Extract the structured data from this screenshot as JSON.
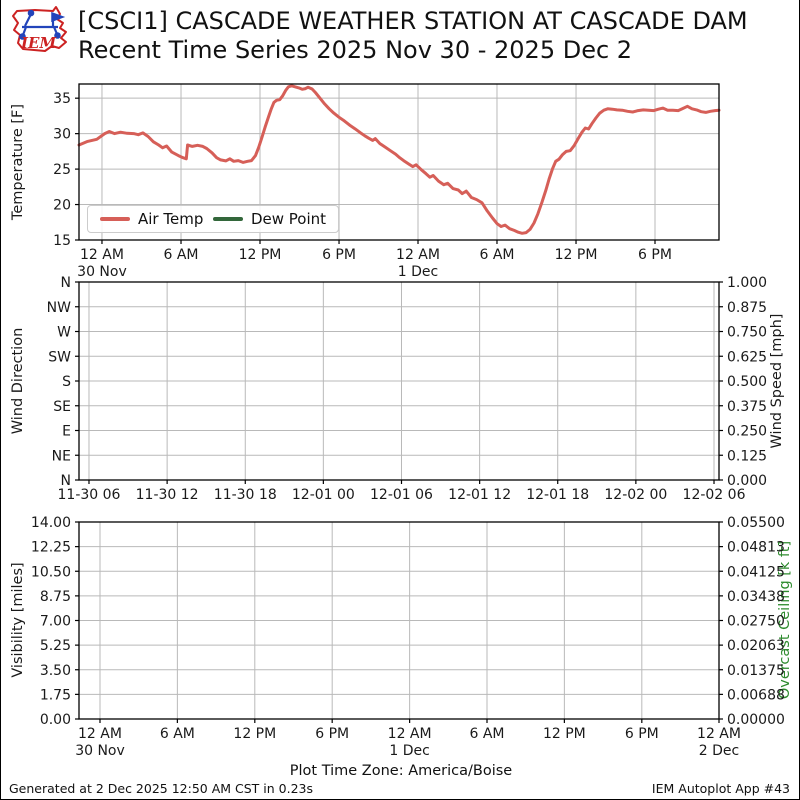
{
  "title": {
    "line1": "[CSCI1] CASCADE WEATHER STATION AT CASCADE DAM",
    "line2": "Recent Time Series 2025 Nov 30 - 2025 Dec 2"
  },
  "logo": {
    "text": "IEM"
  },
  "colors": {
    "air_temp": "#d65f58",
    "dew_point": "#33673b",
    "ceiling_green": "#2e8b2e",
    "logo_red": "#cc2222",
    "logo_blue": "#2244bb",
    "grid": "#b9b9b9"
  },
  "timezone_note": "Plot Time Zone: America/Boise",
  "footer": {
    "left": "Generated at 2 Dec 2025 12:50 AM CST in 0.23s",
    "right": "IEM Autoplot App #43"
  },
  "chart_data": [
    {
      "id": "temperature",
      "type": "line",
      "ylabel": "Temperature [F]",
      "ylim": [
        15,
        37.0
      ],
      "xlim": [
        -1.75,
        46.85
      ],
      "grid": true,
      "legend_position": "lower left",
      "left_ticks": [
        {
          "f": 0.0909,
          "label": "35"
        },
        {
          "f": 0.3182,
          "label": "30"
        },
        {
          "f": 0.5455,
          "label": "25"
        },
        {
          "f": 0.7727,
          "label": "20"
        },
        {
          "f": 1.0,
          "label": "15"
        }
      ],
      "xticks": [
        {
          "f": 0.0359,
          "label": "12 AM",
          "date": "30 Nov"
        },
        {
          "f": 0.1594,
          "label": "6 AM"
        },
        {
          "f": 0.2828,
          "label": "12 PM"
        },
        {
          "f": 0.4063,
          "label": "6 PM"
        },
        {
          "f": 0.5297,
          "label": "12 AM",
          "date": "1 Dec"
        },
        {
          "f": 0.6531,
          "label": "6 AM"
        },
        {
          "f": 0.7766,
          "label": "12 PM"
        },
        {
          "f": 0.9,
          "label": "6 PM"
        }
      ],
      "series": [
        {
          "name": "Air Temp",
          "color": "#d65f58",
          "points": [
            [
              -1.75,
              28.4
            ],
            [
              -1.1,
              28.9
            ],
            [
              -0.4,
              29.2
            ],
            [
              0.2,
              30.0
            ],
            [
              0.55,
              30.3
            ],
            [
              0.95,
              30.0
            ],
            [
              1.4,
              30.2
            ],
            [
              1.9,
              30.05
            ],
            [
              2.4,
              30.0
            ],
            [
              2.75,
              29.85
            ],
            [
              3.1,
              30.1
            ],
            [
              3.5,
              29.6
            ],
            [
              3.9,
              28.85
            ],
            [
              4.3,
              28.4
            ],
            [
              4.6,
              28.0
            ],
            [
              4.9,
              28.25
            ],
            [
              5.3,
              27.4
            ],
            [
              5.8,
              26.9
            ],
            [
              6.15,
              26.6
            ],
            [
              6.4,
              26.45
            ],
            [
              6.5,
              28.4
            ],
            [
              6.85,
              28.2
            ],
            [
              7.25,
              28.35
            ],
            [
              7.65,
              28.2
            ],
            [
              7.95,
              27.9
            ],
            [
              8.35,
              27.3
            ],
            [
              8.7,
              26.6
            ],
            [
              9.0,
              26.3
            ],
            [
              9.4,
              26.15
            ],
            [
              9.7,
              26.45
            ],
            [
              10.0,
              26.1
            ],
            [
              10.35,
              26.2
            ],
            [
              10.7,
              25.95
            ],
            [
              11.05,
              26.1
            ],
            [
              11.35,
              26.2
            ],
            [
              11.65,
              26.9
            ],
            [
              11.9,
              28.1
            ],
            [
              12.15,
              29.5
            ],
            [
              12.4,
              31.0
            ],
            [
              12.65,
              32.4
            ],
            [
              12.85,
              33.5
            ],
            [
              13.05,
              34.4
            ],
            [
              13.25,
              34.7
            ],
            [
              13.5,
              34.8
            ],
            [
              13.7,
              35.3
            ],
            [
              13.95,
              36.1
            ],
            [
              14.15,
              36.6
            ],
            [
              14.4,
              36.75
            ],
            [
              14.65,
              36.6
            ],
            [
              14.95,
              36.45
            ],
            [
              15.2,
              36.25
            ],
            [
              15.45,
              36.35
            ],
            [
              15.65,
              36.55
            ],
            [
              15.95,
              36.3
            ],
            [
              16.2,
              35.8
            ],
            [
              16.55,
              35.0
            ],
            [
              16.9,
              34.2
            ],
            [
              17.25,
              33.5
            ],
            [
              17.6,
              32.9
            ],
            [
              18.0,
              32.3
            ],
            [
              18.4,
              31.8
            ],
            [
              18.8,
              31.2
            ],
            [
              19.2,
              30.7
            ],
            [
              19.6,
              30.15
            ],
            [
              19.95,
              29.7
            ],
            [
              20.25,
              29.35
            ],
            [
              20.55,
              29.05
            ],
            [
              20.75,
              29.3
            ],
            [
              21.1,
              28.6
            ],
            [
              21.5,
              28.1
            ],
            [
              21.9,
              27.6
            ],
            [
              22.3,
              27.1
            ],
            [
              22.6,
              26.6
            ],
            [
              22.9,
              26.2
            ],
            [
              23.3,
              25.7
            ],
            [
              23.6,
              25.35
            ],
            [
              23.85,
              25.6
            ],
            [
              24.25,
              24.9
            ],
            [
              24.6,
              24.35
            ],
            [
              24.9,
              23.85
            ],
            [
              25.15,
              24.1
            ],
            [
              25.55,
              23.3
            ],
            [
              25.95,
              22.8
            ],
            [
              26.25,
              23.0
            ],
            [
              26.65,
              22.25
            ],
            [
              27.05,
              22.05
            ],
            [
              27.35,
              21.55
            ],
            [
              27.65,
              21.9
            ],
            [
              28.05,
              21.0
            ],
            [
              28.45,
              20.7
            ],
            [
              28.85,
              20.25
            ],
            [
              29.25,
              19.1
            ],
            [
              29.65,
              18.1
            ],
            [
              30.0,
              17.3
            ],
            [
              30.3,
              16.9
            ],
            [
              30.6,
              17.1
            ],
            [
              30.95,
              16.6
            ],
            [
              31.3,
              16.35
            ],
            [
              31.6,
              16.1
            ],
            [
              31.9,
              15.95
            ],
            [
              32.2,
              16.05
            ],
            [
              32.5,
              16.5
            ],
            [
              32.8,
              17.4
            ],
            [
              33.1,
              18.7
            ],
            [
              33.4,
              20.3
            ],
            [
              33.7,
              22.0
            ],
            [
              33.95,
              23.6
            ],
            [
              34.2,
              25.0
            ],
            [
              34.45,
              26.1
            ],
            [
              34.7,
              26.4
            ],
            [
              34.95,
              27.0
            ],
            [
              35.25,
              27.5
            ],
            [
              35.55,
              27.6
            ],
            [
              35.85,
              28.3
            ],
            [
              36.15,
              29.3
            ],
            [
              36.45,
              30.2
            ],
            [
              36.7,
              30.8
            ],
            [
              36.95,
              30.65
            ],
            [
              37.2,
              31.4
            ],
            [
              37.5,
              32.2
            ],
            [
              37.8,
              32.9
            ],
            [
              38.1,
              33.3
            ],
            [
              38.4,
              33.5
            ],
            [
              38.75,
              33.45
            ],
            [
              39.1,
              33.35
            ],
            [
              39.5,
              33.3
            ],
            [
              39.9,
              33.15
            ],
            [
              40.3,
              33.05
            ],
            [
              40.7,
              33.25
            ],
            [
              41.1,
              33.35
            ],
            [
              41.5,
              33.3
            ],
            [
              41.9,
              33.25
            ],
            [
              42.25,
              33.45
            ],
            [
              42.6,
              33.6
            ],
            [
              42.95,
              33.3
            ],
            [
              43.35,
              33.3
            ],
            [
              43.75,
              33.25
            ],
            [
              44.1,
              33.55
            ],
            [
              44.45,
              33.85
            ],
            [
              44.8,
              33.5
            ],
            [
              45.15,
              33.35
            ],
            [
              45.5,
              33.1
            ],
            [
              45.85,
              33.0
            ],
            [
              46.2,
              33.15
            ],
            [
              46.55,
              33.25
            ],
            [
              46.85,
              33.3
            ]
          ]
        },
        {
          "name": "Dew Point",
          "color": "#33673b",
          "points": []
        }
      ]
    },
    {
      "id": "wind",
      "type": "line",
      "ylabel": "Wind Direction",
      "ylabel_right": "Wind Speed [mph]",
      "grid": true,
      "left_ticks": [
        {
          "f": 0.0,
          "label": "N"
        },
        {
          "f": 0.125,
          "label": "NW"
        },
        {
          "f": 0.25,
          "label": "W"
        },
        {
          "f": 0.375,
          "label": "SW"
        },
        {
          "f": 0.5,
          "label": "S"
        },
        {
          "f": 0.625,
          "label": "SE"
        },
        {
          "f": 0.75,
          "label": "E"
        },
        {
          "f": 0.875,
          "label": "NE"
        },
        {
          "f": 1.0,
          "label": "N"
        }
      ],
      "right_ticks": [
        {
          "f": 0.0,
          "label": "1.000"
        },
        {
          "f": 0.125,
          "label": "0.875"
        },
        {
          "f": 0.25,
          "label": "0.750"
        },
        {
          "f": 0.375,
          "label": "0.625"
        },
        {
          "f": 0.5,
          "label": "0.500"
        },
        {
          "f": 0.625,
          "label": "0.375"
        },
        {
          "f": 0.75,
          "label": "0.250"
        },
        {
          "f": 0.875,
          "label": "0.125"
        },
        {
          "f": 1.0,
          "label": "0.000"
        }
      ],
      "xticks": [
        {
          "f": 0.0156,
          "label": "11-30 06"
        },
        {
          "f": 0.1377,
          "label": "11-30 12"
        },
        {
          "f": 0.2598,
          "label": "11-30 18"
        },
        {
          "f": 0.3818,
          "label": "12-01 00"
        },
        {
          "f": 0.5039,
          "label": "12-01 06"
        },
        {
          "f": 0.626,
          "label": "12-01 12"
        },
        {
          "f": 0.748,
          "label": "12-01 18"
        },
        {
          "f": 0.8701,
          "label": "12-02 00"
        },
        {
          "f": 0.9922,
          "label": "12-02 06"
        }
      ],
      "series": []
    },
    {
      "id": "visibility",
      "type": "line",
      "ylabel": "Visibility [miles]",
      "ylabel_right": "Overcast Ceiling [k ft]",
      "ylabel_right_color": "#2e8b2e",
      "grid": true,
      "left_ticks": [
        {
          "f": 0.0,
          "label": "14.00"
        },
        {
          "f": 0.125,
          "label": "12.25"
        },
        {
          "f": 0.25,
          "label": "10.50"
        },
        {
          "f": 0.375,
          "label": "8.75"
        },
        {
          "f": 0.5,
          "label": "7.00"
        },
        {
          "f": 0.625,
          "label": "5.25"
        },
        {
          "f": 0.75,
          "label": "3.50"
        },
        {
          "f": 0.875,
          "label": "1.75"
        },
        {
          "f": 1.0,
          "label": "0.00"
        }
      ],
      "right_ticks": [
        {
          "f": 0.0,
          "label": "0.05500"
        },
        {
          "f": 0.125,
          "label": "0.04813"
        },
        {
          "f": 0.25,
          "label": "0.04125"
        },
        {
          "f": 0.375,
          "label": "0.03438"
        },
        {
          "f": 0.5,
          "label": "0.02750"
        },
        {
          "f": 0.625,
          "label": "0.02063"
        },
        {
          "f": 0.75,
          "label": "0.01375"
        },
        {
          "f": 0.875,
          "label": "0.00688"
        },
        {
          "f": 1.0,
          "label": "0.00000"
        }
      ],
      "xticks": [
        {
          "f": 0.0328,
          "label": "12 AM",
          "date": "30 Nov"
        },
        {
          "f": 0.1537,
          "label": "6 AM"
        },
        {
          "f": 0.2747,
          "label": "12 PM"
        },
        {
          "f": 0.3956,
          "label": "6 PM"
        },
        {
          "f": 0.5166,
          "label": "12 AM",
          "date": "1 Dec"
        },
        {
          "f": 0.6375,
          "label": "6 AM"
        },
        {
          "f": 0.7584,
          "label": "12 PM"
        },
        {
          "f": 0.8794,
          "label": "6 PM"
        },
        {
          "f": 1.0,
          "label": "12 AM",
          "date": "2 Dec"
        }
      ],
      "series": []
    }
  ]
}
